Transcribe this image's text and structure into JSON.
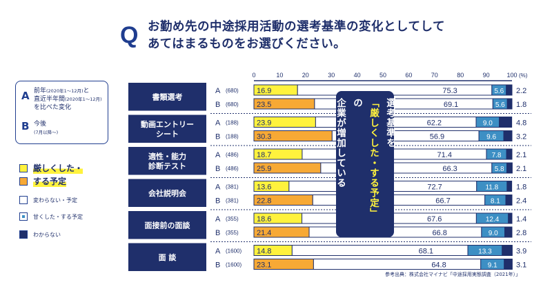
{
  "question": {
    "mark": "Q",
    "line1": "お勤め先の中途採用活動の選考基準の変化としてして",
    "line2": "あてはまるものをお選びください。"
  },
  "legend": {
    "a_letter": "A",
    "a_text_1": "前年",
    "a_text_1_small": "(2020年1〜12月)",
    "a_text_1_tail": "と",
    "a_text_2": "直近半年間",
    "a_text_2_small": "(2020年1〜12月)",
    "a_text_3": "を比べた変化",
    "b_letter": "B",
    "b_text_1": "今後",
    "b_text_2": "(7月以降〜)"
  },
  "keys": [
    {
      "label": "厳しくした・",
      "color": "#fff23d",
      "big": true
    },
    {
      "label": "する予定",
      "color": "#f7a935",
      "big": true
    },
    {
      "label": "変わらない・予定",
      "color": "#ffffff",
      "big": false
    },
    {
      "label": "甘くした・する予定",
      "color": "#3d8fc4",
      "big": false
    },
    {
      "label": "わからない",
      "color": "#1f2f6b",
      "big": false
    }
  ],
  "callout": {
    "col1": "選考基準を",
    "col2": "「厳しくした・する予定」",
    "col3": "の",
    "col4": "企業が増加している"
  },
  "source": "参考出典：株式会社マイナビ「中途採用実態調査（2021年）」",
  "colors": {
    "navy": "#1f2f6b",
    "yellow": "#fff23d",
    "orange": "#f7a935",
    "blue": "#3d8fc4",
    "white": "#ffffff"
  },
  "chart_data": {
    "type": "bar",
    "stacked": true,
    "orientation": "horizontal",
    "xlim": [
      0,
      100
    ],
    "ticks": [
      "0",
      "10",
      "20",
      "30",
      "40",
      "50",
      "60",
      "70",
      "80",
      "90",
      "100"
    ],
    "unit": "(%)",
    "series": [
      {
        "name": "厳しくした・する予定",
        "color": "yellow/orange"
      },
      {
        "name": "変わらない・予定",
        "color": "white"
      },
      {
        "name": "甘くした・する予定",
        "color": "blue"
      },
      {
        "name": "わからない",
        "color": "navy"
      }
    ],
    "groups": [
      {
        "category": "書類選考",
        "rows": [
          {
            "label": "A",
            "n": "(680)",
            "strict": 16.9,
            "same": 75.3,
            "lenient": 5.6,
            "unknown": 2.2
          },
          {
            "label": "B",
            "n": "(680)",
            "strict": 23.5,
            "same": 69.1,
            "lenient": 5.6,
            "unknown": 1.8
          }
        ]
      },
      {
        "category": "動画エントリー\nシート",
        "rows": [
          {
            "label": "A",
            "n": "(188)",
            "strict": 23.9,
            "same": 62.2,
            "lenient": 9.0,
            "unknown": 4.8
          },
          {
            "label": "B",
            "n": "(188)",
            "strict": 30.3,
            "same": 56.9,
            "lenient": 9.6,
            "unknown": 3.2
          }
        ]
      },
      {
        "category": "適性・能力\n診断テスト",
        "rows": [
          {
            "label": "A",
            "n": "(486)",
            "strict": 18.7,
            "same": 71.4,
            "lenient": 7.8,
            "unknown": 2.1
          },
          {
            "label": "B",
            "n": "(486)",
            "strict": 25.9,
            "same": 66.3,
            "lenient": 5.8,
            "unknown": 2.1
          }
        ]
      },
      {
        "category": "会社説明会",
        "rows": [
          {
            "label": "A",
            "n": "(381)",
            "strict": 13.6,
            "same": 72.7,
            "lenient": 11.8,
            "unknown": 1.8
          },
          {
            "label": "B",
            "n": "(381)",
            "strict": 22.8,
            "same": 66.7,
            "lenient": 8.1,
            "unknown": 2.4
          }
        ]
      },
      {
        "category": "面接前の面談",
        "rows": [
          {
            "label": "A",
            "n": "(355)",
            "strict": 18.6,
            "same": 67.6,
            "lenient": 12.4,
            "unknown": 1.4
          },
          {
            "label": "B",
            "n": "(355)",
            "strict": 21.4,
            "same": 66.8,
            "lenient": 9.0,
            "unknown": 2.8
          }
        ]
      },
      {
        "category": "面 談",
        "rows": [
          {
            "label": "A",
            "n": "(1600)",
            "strict": 14.8,
            "same": 68.1,
            "lenient": 13.3,
            "unknown": 3.9
          },
          {
            "label": "B",
            "n": "(1600)",
            "strict": 23.1,
            "same": 64.8,
            "lenient": 9.1,
            "unknown": 3.1
          }
        ]
      }
    ]
  }
}
